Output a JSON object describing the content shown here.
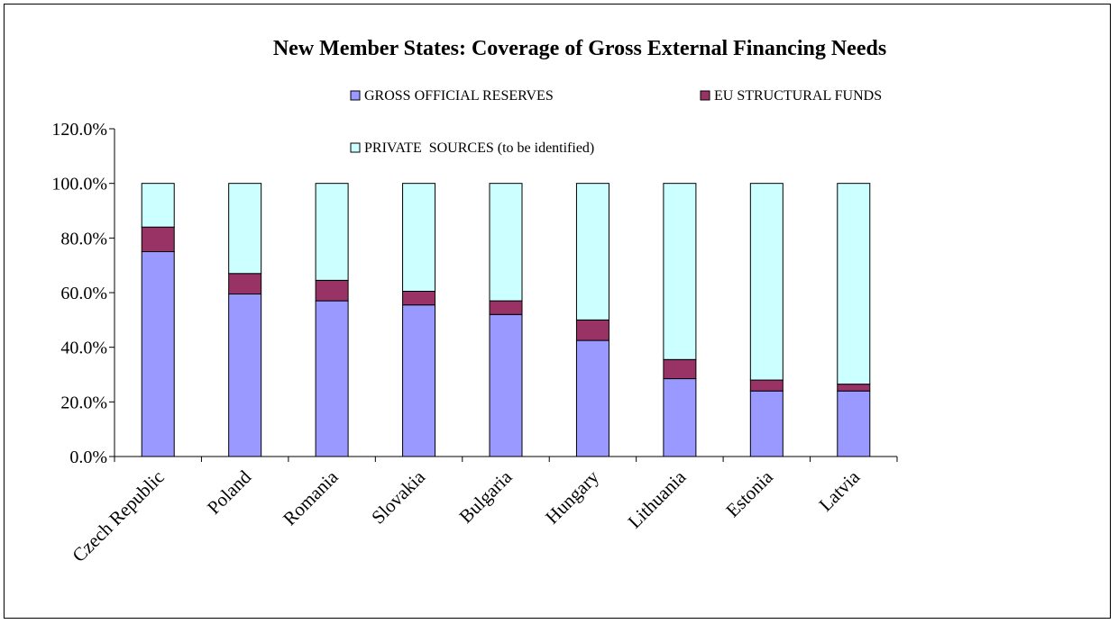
{
  "chart_data": {
    "type": "bar",
    "stacked": true,
    "title": "New Member States: Coverage of Gross External Financing Needs",
    "xlabel": "",
    "ylabel": "",
    "categories": [
      "Czech Republic",
      "Poland",
      "Romania",
      "Slovakia",
      "Bulgaria",
      "Hungary",
      "Lithuania",
      "Estonia",
      "Latvia"
    ],
    "series": [
      {
        "name": "GROSS OFFICIAL RESERVES",
        "color": "#9999ff",
        "values": [
          75.0,
          59.5,
          57.0,
          55.5,
          52.0,
          42.5,
          28.5,
          24.0,
          24.0
        ]
      },
      {
        "name": "EU STRUCTURAL FUNDS",
        "color": "#993366",
        "values": [
          9.0,
          7.5,
          7.5,
          5.0,
          5.0,
          7.5,
          7.0,
          4.0,
          2.5
        ]
      },
      {
        "name": "PRIVATE  SOURCES (to be identified)",
        "color": "#ccffff",
        "values": [
          16.0,
          33.0,
          35.5,
          39.5,
          43.0,
          50.0,
          64.5,
          72.0,
          73.5
        ]
      }
    ],
    "ylim": [
      0,
      120
    ],
    "yticks": [
      "0.0%",
      "20.0%",
      "40.0%",
      "60.0%",
      "80.0%",
      "100.0%",
      "120.0%"
    ],
    "grid": false,
    "legend_position": "top"
  }
}
